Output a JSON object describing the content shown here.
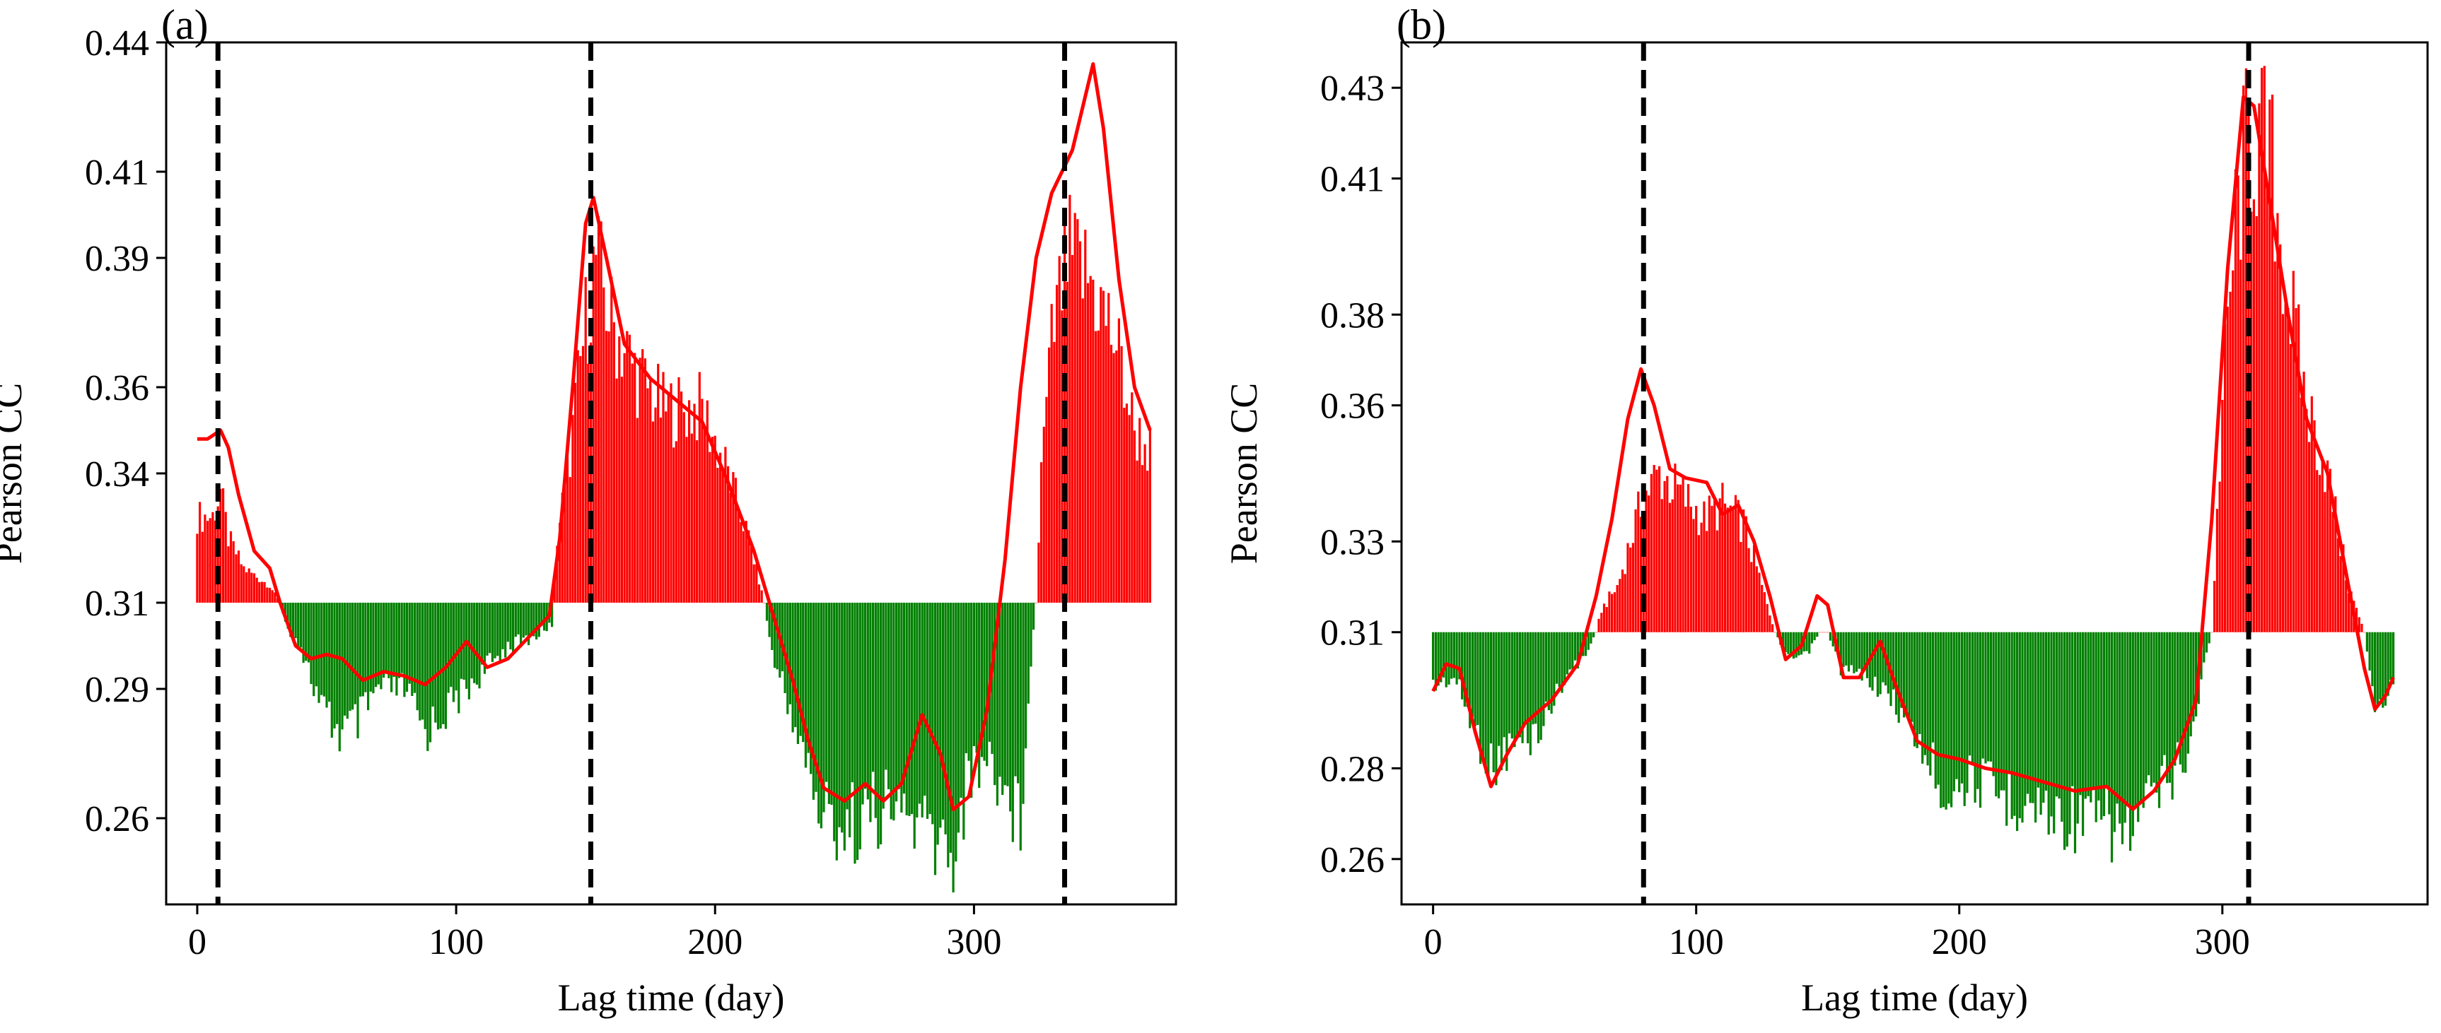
{
  "chart_data": [
    {
      "type": "bar",
      "panel_label": "(a)",
      "xlabel": "Lag time (day)",
      "ylabel": "Pearson CC",
      "baseline": 0.31,
      "xlim": [
        -12,
        378
      ],
      "ylim": [
        0.24,
        0.44
      ],
      "xticks": [
        0,
        100,
        200,
        300
      ],
      "yticks": [
        0.26,
        0.29,
        0.31,
        0.34,
        0.36,
        0.39,
        0.41,
        0.44
      ],
      "ytick_labels": [
        "0.26",
        "0.29",
        "0.31",
        "0.34",
        "0.36",
        "0.39",
        "0.41",
        "0.44"
      ],
      "vlines": [
        8,
        152,
        335
      ],
      "colors": {
        "positive": "#ff0000",
        "negative": "#008000",
        "curve": "#ff0000",
        "vline": "#000000"
      },
      "bar_profile": [
        [
          0,
          0.33
        ],
        [
          6,
          0.33
        ],
        [
          9,
          0.336
        ],
        [
          12,
          0.325
        ],
        [
          18,
          0.318
        ],
        [
          28,
          0.314
        ],
        [
          32,
          0.31
        ],
        [
          34,
          0.305
        ],
        [
          40,
          0.3
        ],
        [
          48,
          0.285
        ],
        [
          55,
          0.28
        ],
        [
          62,
          0.282
        ],
        [
          70,
          0.29
        ],
        [
          80,
          0.29
        ],
        [
          88,
          0.28
        ],
        [
          96,
          0.285
        ],
        [
          104,
          0.29
        ],
        [
          112,
          0.295
        ],
        [
          120,
          0.3
        ],
        [
          130,
          0.302
        ],
        [
          137,
          0.305
        ],
        [
          139,
          0.325
        ],
        [
          144,
          0.345
        ],
        [
          150,
          0.375
        ],
        [
          154,
          0.39
        ],
        [
          160,
          0.375
        ],
        [
          170,
          0.363
        ],
        [
          180,
          0.355
        ],
        [
          195,
          0.355
        ],
        [
          205,
          0.34
        ],
        [
          213,
          0.325
        ],
        [
          219,
          0.31
        ],
        [
          222,
          0.298
        ],
        [
          232,
          0.28
        ],
        [
          240,
          0.262
        ],
        [
          250,
          0.258
        ],
        [
          262,
          0.262
        ],
        [
          272,
          0.262
        ],
        [
          285,
          0.255
        ],
        [
          292,
          0.252
        ],
        [
          298,
          0.27
        ],
        [
          305,
          0.275
        ],
        [
          313,
          0.265
        ],
        [
          318,
          0.26
        ],
        [
          321,
          0.29
        ],
        [
          324,
          0.31
        ],
        [
          326,
          0.34
        ],
        [
          330,
          0.37
        ],
        [
          336,
          0.39
        ],
        [
          345,
          0.385
        ],
        [
          355,
          0.37
        ],
        [
          362,
          0.35
        ],
        [
          368,
          0.345
        ]
      ],
      "curve": [
        [
          0,
          0.348
        ],
        [
          4,
          0.348
        ],
        [
          9,
          0.35
        ],
        [
          12,
          0.346
        ],
        [
          16,
          0.335
        ],
        [
          22,
          0.322
        ],
        [
          28,
          0.318
        ],
        [
          32,
          0.31
        ],
        [
          38,
          0.3
        ],
        [
          44,
          0.297
        ],
        [
          50,
          0.298
        ],
        [
          56,
          0.297
        ],
        [
          64,
          0.292
        ],
        [
          72,
          0.294
        ],
        [
          80,
          0.293
        ],
        [
          88,
          0.291
        ],
        [
          96,
          0.295
        ],
        [
          104,
          0.301
        ],
        [
          112,
          0.295
        ],
        [
          120,
          0.297
        ],
        [
          128,
          0.302
        ],
        [
          136,
          0.307
        ],
        [
          140,
          0.325
        ],
        [
          145,
          0.36
        ],
        [
          150,
          0.398
        ],
        [
          153,
          0.404
        ],
        [
          158,
          0.39
        ],
        [
          165,
          0.37
        ],
        [
          175,
          0.362
        ],
        [
          185,
          0.357
        ],
        [
          195,
          0.352
        ],
        [
          205,
          0.338
        ],
        [
          215,
          0.322
        ],
        [
          222,
          0.308
        ],
        [
          230,
          0.292
        ],
        [
          236,
          0.278
        ],
        [
          242,
          0.267
        ],
        [
          250,
          0.264
        ],
        [
          258,
          0.268
        ],
        [
          265,
          0.264
        ],
        [
          272,
          0.268
        ],
        [
          280,
          0.284
        ],
        [
          287,
          0.275
        ],
        [
          292,
          0.262
        ],
        [
          298,
          0.265
        ],
        [
          305,
          0.285
        ],
        [
          312,
          0.32
        ],
        [
          318,
          0.36
        ],
        [
          324,
          0.39
        ],
        [
          330,
          0.405
        ],
        [
          338,
          0.415
        ],
        [
          346,
          0.435
        ],
        [
          350,
          0.42
        ],
        [
          356,
          0.385
        ],
        [
          362,
          0.36
        ],
        [
          368,
          0.35
        ]
      ]
    },
    {
      "type": "bar",
      "panel_label": "(b)",
      "xlabel": "Lag time (day)",
      "ylabel": "Pearson CC",
      "baseline": 0.31,
      "xlim": [
        -12,
        378
      ],
      "ylim": [
        0.25,
        0.44
      ],
      "xticks": [
        0,
        100,
        200,
        300
      ],
      "yticks": [
        0.26,
        0.28,
        0.31,
        0.33,
        0.36,
        0.38,
        0.41,
        0.43
      ],
      "ytick_labels": [
        "0.26",
        "0.28",
        "0.31",
        "0.33",
        "0.36",
        "0.38",
        "0.41",
        "0.43"
      ],
      "vlines": [
        80,
        310
      ],
      "colors": {
        "positive": "#ff0000",
        "negative": "#008000",
        "curve": "#ff0000",
        "vline": "#000000"
      },
      "bar_profile": [
        [
          0,
          0.298
        ],
        [
          8,
          0.3
        ],
        [
          15,
          0.29
        ],
        [
          22,
          0.28
        ],
        [
          30,
          0.285
        ],
        [
          40,
          0.288
        ],
        [
          50,
          0.3
        ],
        [
          58,
          0.305
        ],
        [
          62,
          0.31
        ],
        [
          64,
          0.315
        ],
        [
          70,
          0.32
        ],
        [
          75,
          0.33
        ],
        [
          80,
          0.34
        ],
        [
          86,
          0.345
        ],
        [
          95,
          0.34
        ],
        [
          103,
          0.335
        ],
        [
          110,
          0.338
        ],
        [
          118,
          0.334
        ],
        [
          125,
          0.32
        ],
        [
          130,
          0.31
        ],
        [
          135,
          0.304
        ],
        [
          142,
          0.305
        ],
        [
          147,
          0.31
        ],
        [
          150,
          0.31
        ],
        [
          155,
          0.302
        ],
        [
          165,
          0.3
        ],
        [
          175,
          0.295
        ],
        [
          185,
          0.285
        ],
        [
          195,
          0.275
        ],
        [
          205,
          0.278
        ],
        [
          215,
          0.274
        ],
        [
          225,
          0.273
        ],
        [
          235,
          0.27
        ],
        [
          245,
          0.269
        ],
        [
          255,
          0.268
        ],
        [
          265,
          0.266
        ],
        [
          272,
          0.272
        ],
        [
          282,
          0.28
        ],
        [
          288,
          0.285
        ],
        [
          292,
          0.3
        ],
        [
          296,
          0.31
        ],
        [
          300,
          0.36
        ],
        [
          305,
          0.4
        ],
        [
          310,
          0.42
        ],
        [
          318,
          0.415
        ],
        [
          325,
          0.385
        ],
        [
          332,
          0.36
        ],
        [
          340,
          0.345
        ],
        [
          348,
          0.32
        ],
        [
          354,
          0.31
        ],
        [
          358,
          0.292
        ],
        [
          365,
          0.298
        ]
      ],
      "curve": [
        [
          0,
          0.297
        ],
        [
          5,
          0.303
        ],
        [
          10,
          0.302
        ],
        [
          16,
          0.288
        ],
        [
          22,
          0.276
        ],
        [
          28,
          0.283
        ],
        [
          35,
          0.29
        ],
        [
          45,
          0.295
        ],
        [
          55,
          0.303
        ],
        [
          62,
          0.318
        ],
        [
          68,
          0.335
        ],
        [
          74,
          0.357
        ],
        [
          79,
          0.368
        ],
        [
          84,
          0.36
        ],
        [
          90,
          0.346
        ],
        [
          96,
          0.344
        ],
        [
          104,
          0.343
        ],
        [
          110,
          0.336
        ],
        [
          116,
          0.338
        ],
        [
          122,
          0.33
        ],
        [
          128,
          0.318
        ],
        [
          134,
          0.304
        ],
        [
          140,
          0.307
        ],
        [
          146,
          0.318
        ],
        [
          150,
          0.316
        ],
        [
          156,
          0.3
        ],
        [
          162,
          0.3
        ],
        [
          170,
          0.308
        ],
        [
          176,
          0.298
        ],
        [
          184,
          0.286
        ],
        [
          192,
          0.283
        ],
        [
          200,
          0.282
        ],
        [
          210,
          0.28
        ],
        [
          220,
          0.279
        ],
        [
          232,
          0.277
        ],
        [
          244,
          0.275
        ],
        [
          256,
          0.276
        ],
        [
          266,
          0.271
        ],
        [
          274,
          0.275
        ],
        [
          282,
          0.282
        ],
        [
          290,
          0.295
        ],
        [
          296,
          0.335
        ],
        [
          302,
          0.39
        ],
        [
          308,
          0.428
        ],
        [
          312,
          0.426
        ],
        [
          318,
          0.405
        ],
        [
          325,
          0.38
        ],
        [
          332,
          0.357
        ],
        [
          340,
          0.345
        ],
        [
          348,
          0.32
        ],
        [
          354,
          0.302
        ],
        [
          358,
          0.293
        ],
        [
          362,
          0.296
        ],
        [
          365,
          0.3
        ]
      ]
    }
  ]
}
